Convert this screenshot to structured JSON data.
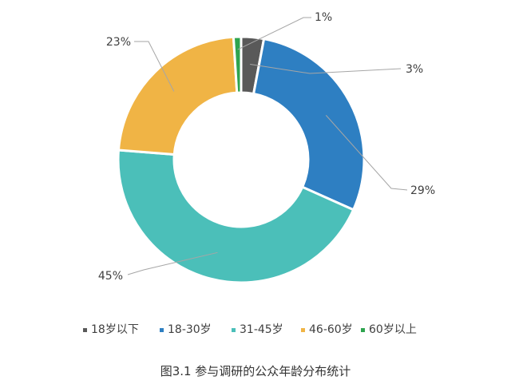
{
  "chart_data": {
    "type": "pie",
    "donut": true,
    "categories": [
      "18岁以下",
      "18-30岁",
      "31-45岁",
      "46-60岁",
      "60岁以上"
    ],
    "values": [
      3,
      29,
      45,
      23,
      1
    ],
    "value_labels": [
      "3%",
      "29%",
      "45%",
      "23%",
      "1%"
    ],
    "colors": [
      "#595959",
      "#2e7fc2",
      "#4bbfb9",
      "#f0b445",
      "#2ea44f"
    ],
    "title": "",
    "legend_position": "bottom",
    "caption": "图3.1 参与调研的公众年龄分布统计"
  }
}
